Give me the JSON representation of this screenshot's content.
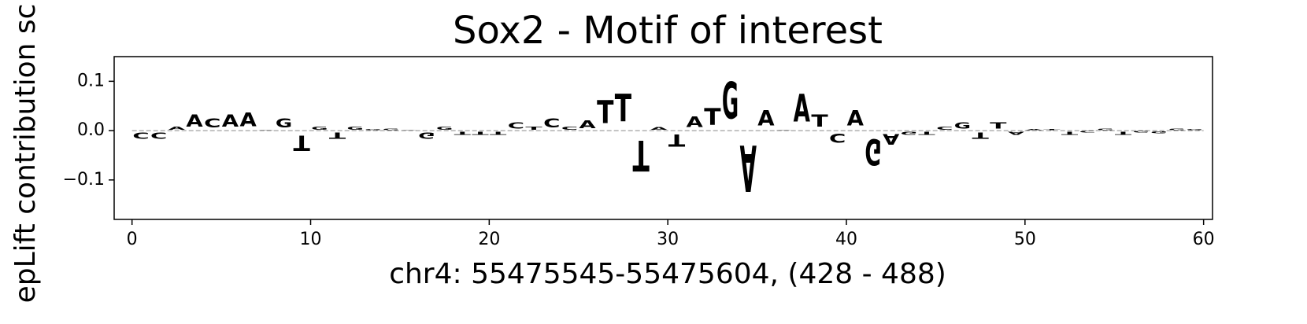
{
  "chart_data": {
    "type": "logo",
    "title": "Sox2 - Motif of interest",
    "x_label": "chr4: 55475545-55475604, (428 - 488)",
    "y_label": "epLift contribution sc",
    "sequence": [
      "C",
      "C",
      "A",
      "A",
      "C",
      "A",
      "A",
      "A",
      "G",
      "T",
      "G",
      "T",
      "G",
      "G",
      "G",
      "A",
      "G",
      "G",
      "T",
      "T",
      "T",
      "C",
      "T",
      "C",
      "C",
      "A",
      "T",
      "T",
      "T",
      "A",
      "T",
      "A",
      "T",
      "G",
      "A",
      "A",
      "A",
      "A",
      "T",
      "C",
      "A",
      "G",
      "A",
      "G",
      "T",
      "C",
      "G",
      "T",
      "T",
      "A",
      "A",
      "T",
      "T",
      "C",
      "G",
      "T",
      "G",
      "G",
      "G",
      "G"
    ],
    "values": [
      -0.02,
      -0.02,
      0.01,
      0.04,
      0.03,
      0.04,
      0.045,
      0.002,
      0.03,
      -0.05,
      0.01,
      -0.02,
      0.01,
      0.003,
      0.005,
      0.002,
      -0.02,
      0.01,
      -0.01,
      -0.01,
      -0.01,
      0.02,
      0.01,
      0.03,
      0.01,
      0.025,
      0.075,
      0.09,
      -0.1,
      0.008,
      -0.04,
      0.035,
      0.055,
      0.12,
      -0.15,
      0.05,
      0.002,
      0.09,
      0.04,
      -0.03,
      0.05,
      -0.085,
      -0.035,
      -0.01,
      -0.01,
      0.01,
      0.02,
      -0.02,
      0.02,
      -0.01,
      0.003,
      0.003,
      -0.01,
      -0.005,
      0.005,
      -0.01,
      -0.005,
      -0.007,
      0.004,
      0.003
    ],
    "letter_colors": {
      "A": "#008000",
      "C": "#0000ff",
      "G": "#ffa500",
      "T": "#ff0000"
    },
    "xlim": [
      -1,
      60.5
    ],
    "xticks": [
      0,
      10,
      20,
      30,
      40,
      50,
      60
    ],
    "ylim": [
      -0.18,
      0.15
    ],
    "yticks": [
      {
        "value": -0.1,
        "label": "−0.1"
      },
      {
        "value": 0,
        "label": "0.0"
      },
      0.1
    ]
  }
}
